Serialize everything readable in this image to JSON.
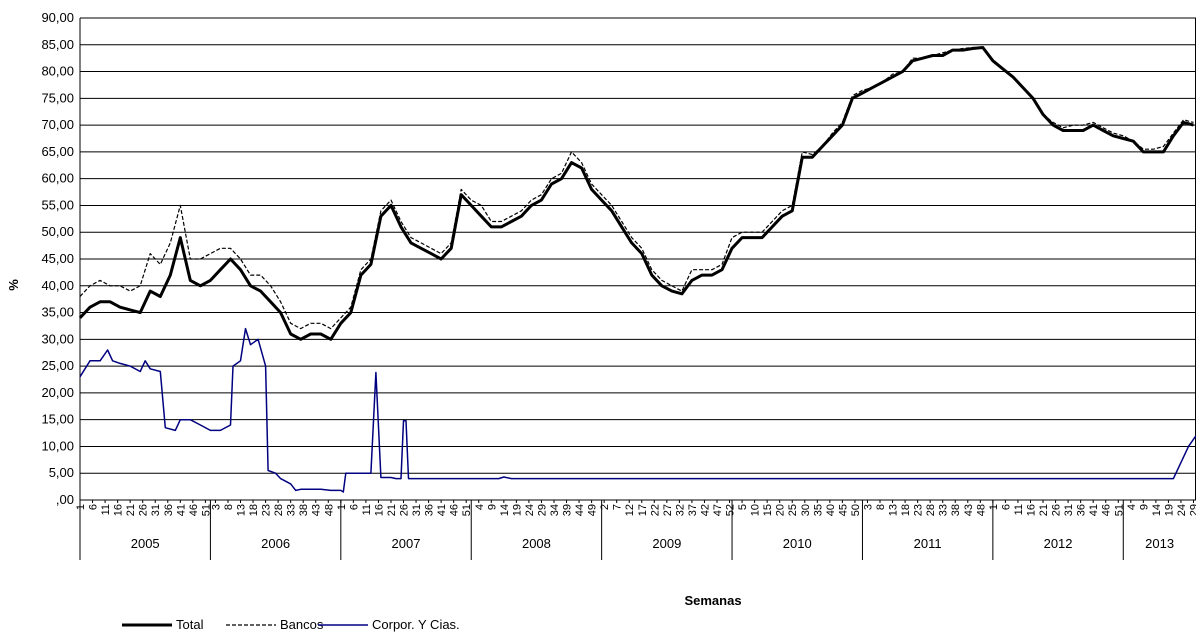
{
  "chart_data": {
    "type": "line",
    "y_label": "%",
    "x_label": "Semanas",
    "grid": true,
    "ylim": [
      0,
      90
    ],
    "yticks": [
      {
        "value": 0,
        "label": ",00"
      },
      {
        "value": 5,
        "label": "5,00"
      },
      {
        "value": 10,
        "label": "10,00"
      },
      {
        "value": 15,
        "label": "15,00"
      },
      {
        "value": 20,
        "label": "20,00"
      },
      {
        "value": 25,
        "label": "25,00"
      },
      {
        "value": 30,
        "label": "30,00"
      },
      {
        "value": 35,
        "label": "35,00"
      },
      {
        "value": 40,
        "label": "40,00"
      },
      {
        "value": 45,
        "label": "45,00"
      },
      {
        "value": 50,
        "label": "50,00"
      },
      {
        "value": 55,
        "label": "55,00"
      },
      {
        "value": 60,
        "label": "60,00"
      },
      {
        "value": 65,
        "label": "65,00"
      },
      {
        "value": 70,
        "label": "70,00"
      },
      {
        "value": 75,
        "label": "75,00"
      },
      {
        "value": 80,
        "label": "80,00"
      },
      {
        "value": 85,
        "label": "85,00"
      },
      {
        "value": 90,
        "label": "90,00"
      }
    ],
    "xlim": [
      0,
      445
    ],
    "years": [
      {
        "label": "2005",
        "weeks": [
          1,
          6,
          11,
          16,
          21,
          26,
          31,
          36,
          41,
          46,
          51
        ]
      },
      {
        "label": "2006",
        "weeks": [
          3,
          8,
          13,
          18,
          23,
          28,
          33,
          38,
          43,
          48
        ]
      },
      {
        "label": "2007",
        "weeks": [
          1,
          6,
          11,
          16,
          21,
          26,
          31,
          36,
          41,
          46,
          51
        ]
      },
      {
        "label": "2008",
        "weeks": [
          4,
          9,
          14,
          19,
          24,
          29,
          34,
          39,
          44,
          49
        ]
      },
      {
        "label": "2009",
        "weeks": [
          2,
          7,
          12,
          17,
          22,
          27,
          32,
          37,
          42,
          47,
          52
        ]
      },
      {
        "label": "2010",
        "weeks": [
          5,
          10,
          15,
          20,
          25,
          30,
          35,
          40,
          45,
          50
        ]
      },
      {
        "label": "2011",
        "weeks": [
          3,
          8,
          13,
          18,
          23,
          28,
          33,
          38,
          43,
          48
        ]
      },
      {
        "label": "2012",
        "weeks": [
          1,
          6,
          11,
          16,
          21,
          26,
          31,
          36,
          41,
          46,
          51
        ]
      },
      {
        "label": "2013",
        "weeks": [
          4,
          9,
          14,
          19,
          24,
          29
        ]
      }
    ],
    "x": [
      0,
      4,
      8,
      12,
      16,
      20,
      24,
      28,
      32,
      36,
      40,
      44,
      48,
      52,
      56,
      60,
      64,
      68,
      72,
      76,
      80,
      84,
      88,
      92,
      96,
      100,
      104,
      108,
      112,
      116,
      120,
      124,
      128,
      132,
      136,
      140,
      144,
      148,
      152,
      156,
      160,
      164,
      168,
      172,
      176,
      180,
      184,
      188,
      192,
      196,
      200,
      204,
      208,
      212,
      216,
      220,
      224,
      228,
      232,
      236,
      240,
      244,
      248,
      252,
      256,
      260,
      264,
      268,
      272,
      276,
      280,
      284,
      288,
      292,
      296,
      300,
      304,
      308,
      312,
      316,
      320,
      324,
      328,
      332,
      336,
      340,
      344,
      348,
      352,
      356,
      360,
      364,
      368,
      372,
      376,
      380,
      384,
      388,
      392,
      396,
      400,
      404,
      408,
      412,
      416,
      420,
      424,
      428,
      432,
      436,
      440,
      444
    ],
    "series": [
      {
        "name": "Total",
        "color": "#000000",
        "style": "solid",
        "values": [
          34,
          36,
          37,
          37,
          36,
          35.5,
          35,
          39,
          38,
          42,
          49,
          41,
          40,
          41,
          43,
          45,
          43,
          40,
          39,
          37,
          35,
          31,
          30,
          31,
          31,
          30,
          33,
          35,
          42,
          44,
          53,
          55,
          51,
          48,
          47,
          46,
          45,
          47,
          57,
          55,
          53,
          51,
          51,
          52,
          53,
          55,
          56,
          59,
          60,
          63,
          62,
          58,
          56,
          54,
          51,
          48,
          46,
          42,
          40,
          39,
          38.5,
          41,
          42,
          42,
          43,
          47,
          49,
          49,
          49,
          51,
          53,
          54,
          64,
          64,
          66,
          68,
          70,
          75,
          76,
          77,
          78,
          79,
          80,
          82,
          82.5,
          83,
          83,
          84,
          84,
          84.3,
          84.5,
          82,
          80.5,
          79,
          77,
          75,
          72,
          70,
          69,
          69,
          69,
          70,
          69,
          68,
          67.5,
          67,
          65,
          65,
          65,
          68,
          70.5,
          70
        ]
      },
      {
        "name": "Bancos",
        "color": "#000000",
        "style": "dashed",
        "values": [
          38,
          40,
          41,
          40,
          40,
          39,
          40,
          46,
          44,
          48,
          55,
          45,
          45,
          46,
          47,
          47,
          45,
          42,
          42,
          40,
          37,
          33,
          32,
          33,
          33,
          32,
          34,
          36,
          43,
          45,
          54,
          56,
          52,
          49,
          48,
          47,
          46,
          48,
          58,
          56,
          55,
          52,
          52,
          53,
          54,
          56,
          57,
          60,
          61,
          65,
          63,
          59,
          57,
          55,
          52,
          49,
          47,
          43,
          41,
          40,
          39,
          43,
          43,
          43,
          44,
          49,
          50,
          50,
          50,
          52,
          54,
          55,
          65,
          64.5,
          66,
          68.5,
          70.5,
          75.5,
          76.5,
          77,
          78,
          79.5,
          80,
          82.5,
          82.5,
          83,
          83.5,
          84,
          84.3,
          84.5,
          84.5,
          82,
          80.5,
          79,
          77,
          75,
          72,
          70.5,
          69.5,
          70,
          70,
          70.5,
          69.5,
          68.5,
          68,
          67,
          65.5,
          65.5,
          66,
          68.5,
          71,
          70.5
        ]
      },
      {
        "name": "Corpor. Y Cias.",
        "color": "#000080",
        "style": "solid",
        "x": [
          0,
          4,
          8,
          11,
          13,
          16,
          20,
          24,
          26,
          28,
          32,
          34,
          38,
          40,
          44,
          48,
          52,
          56,
          60,
          61,
          64,
          66,
          68,
          71,
          74,
          75,
          78,
          80,
          84,
          86,
          88,
          96,
          100,
          104,
          105,
          106,
          114,
          116,
          118,
          120,
          124,
          126,
          128,
          129,
          130,
          131,
          167,
          169,
          172,
          436,
          438,
          442,
          445
        ],
        "values": [
          23,
          26,
          26,
          28,
          26,
          25.5,
          25,
          24,
          26,
          24.5,
          24,
          13.5,
          13,
          15,
          15,
          14,
          13,
          13,
          14,
          25,
          26,
          32,
          29,
          30,
          25,
          5.5,
          5,
          4,
          3,
          1.8,
          2,
          2,
          1.8,
          1.8,
          1.5,
          5,
          5,
          5,
          23.8,
          4.2,
          4.2,
          4,
          4,
          14.8,
          14.8,
          4,
          4,
          4.3,
          4,
          4,
          6,
          10,
          12
        ]
      }
    ]
  }
}
